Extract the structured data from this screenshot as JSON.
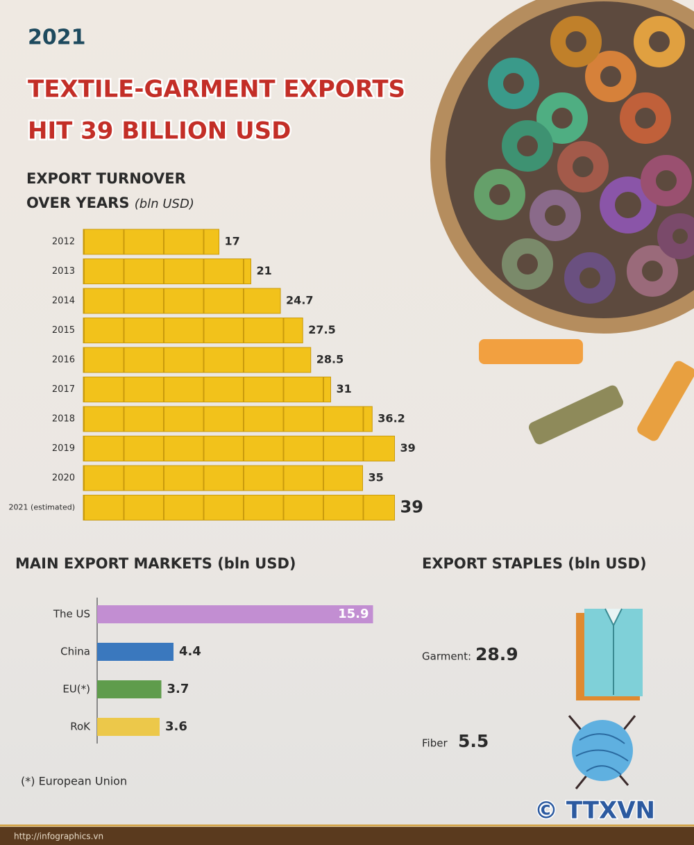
{
  "header": {
    "year": "2021",
    "title_line1": "TEXTILE-GARMENT EXPORTS",
    "title_line2": "HIT 39 BILLION USD"
  },
  "chart_data": [
    {
      "type": "bar",
      "orientation": "horizontal",
      "title": "EXPORT TURNOVER OVER YEARS",
      "unit": "(bln USD)",
      "categories": [
        "2012",
        "2013",
        "2014",
        "2015",
        "2016",
        "2017",
        "2018",
        "2019",
        "2020",
        "2021 (estimated)"
      ],
      "values": [
        17,
        21,
        24.7,
        27.5,
        28.5,
        31,
        36.2,
        39,
        35,
        39
      ],
      "color": "#f2c21b"
    },
    {
      "type": "bar",
      "orientation": "horizontal",
      "title": "MAIN EXPORT MARKETS (bln USD)",
      "categories": [
        "The US",
        "China",
        "EU(*)",
        "RoK"
      ],
      "values": [
        15.9,
        4.4,
        3.7,
        3.6
      ],
      "colors": [
        "#c28ed2",
        "#3a78be",
        "#5f9c4c",
        "#ecc84a"
      ],
      "footnote": "(*) European Union"
    }
  ],
  "export_staples": {
    "title": "EXPORT STAPLES (bln USD)",
    "items": [
      {
        "label": "Garment:",
        "value": "28.9"
      },
      {
        "label": "Fiber",
        "value": "5.5"
      }
    ]
  },
  "footer": {
    "logo": "© TTXVN",
    "url": "http://infographics.vn"
  }
}
